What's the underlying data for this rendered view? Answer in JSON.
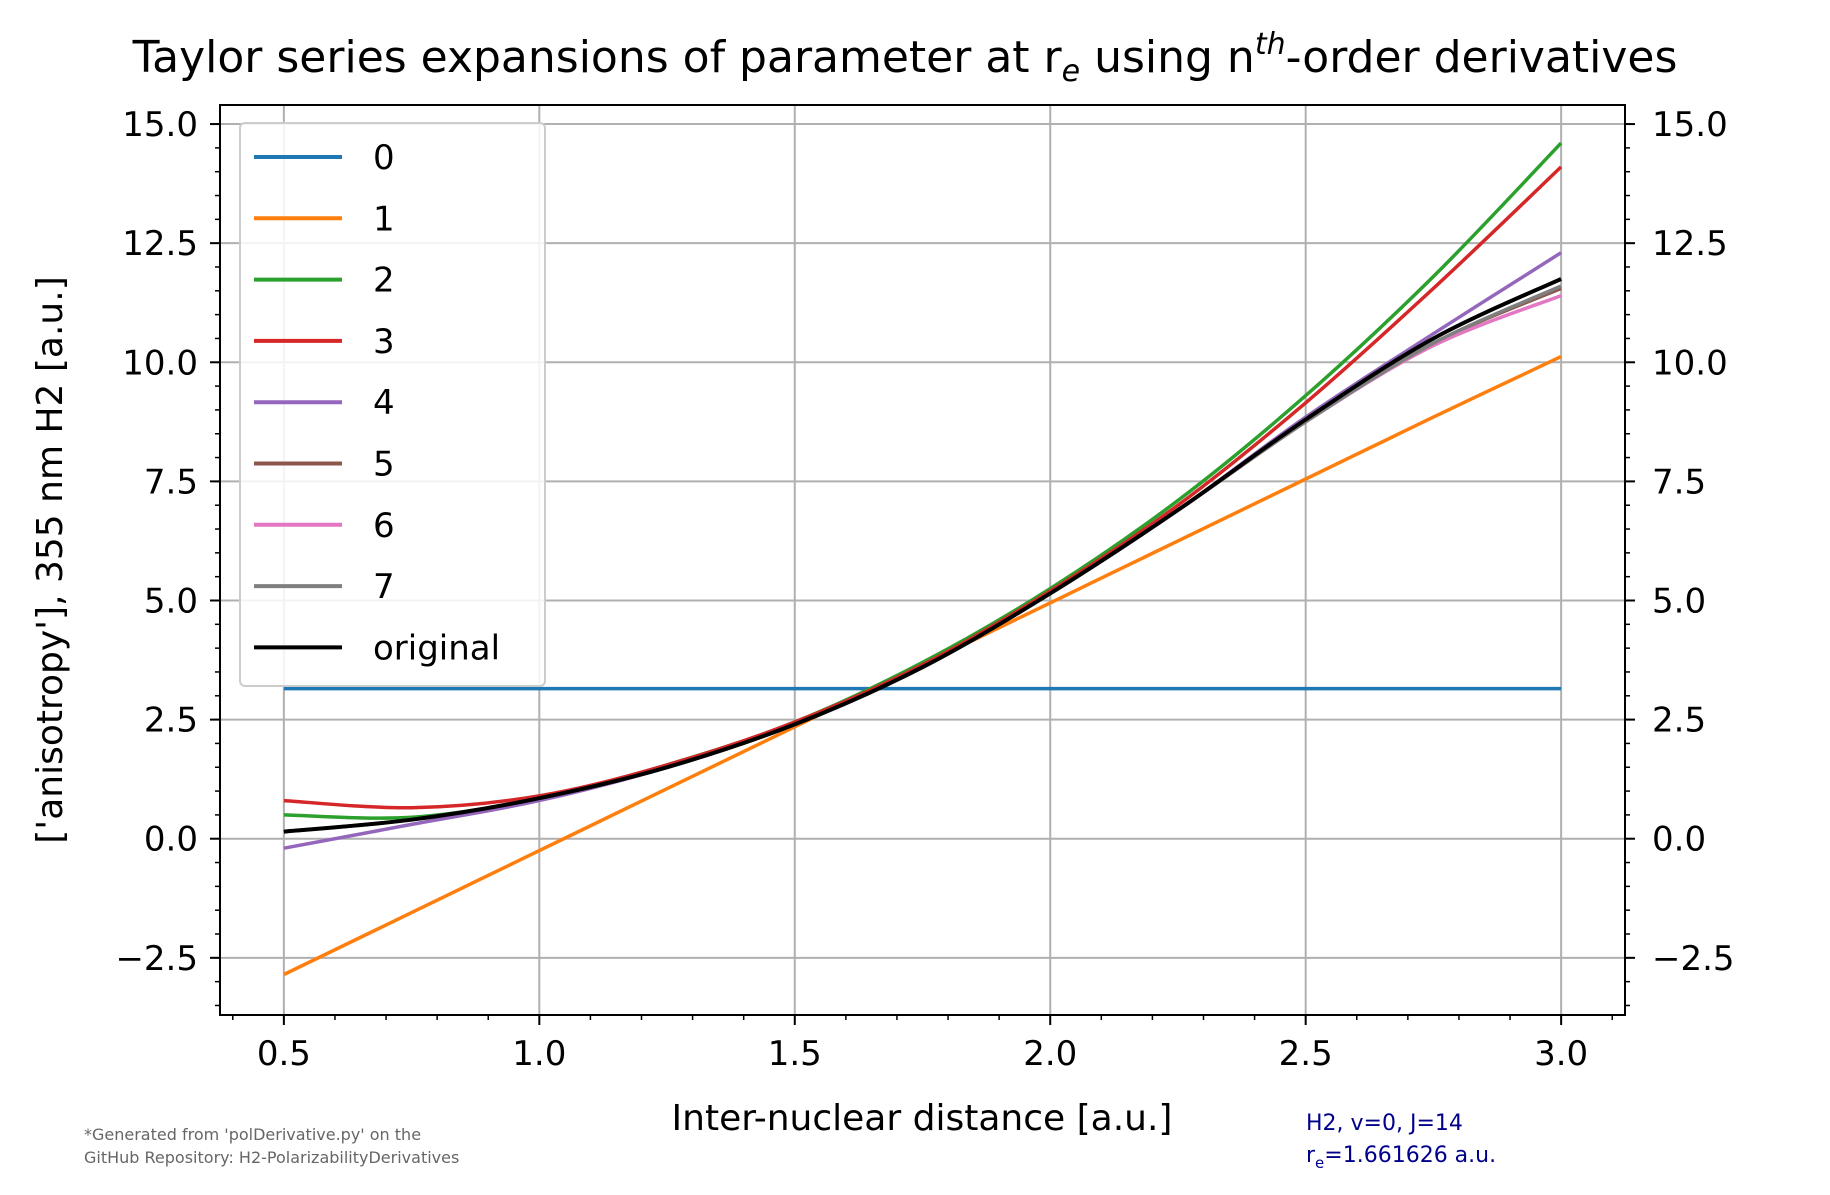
{
  "chart_data": {
    "type": "line",
    "title": "Taylor series expansions of parameter at r",
    "title_sub": "e",
    "title_mid": " using n",
    "title_sup": "th",
    "title_end": "-order derivatives",
    "xlabel": "Inter-nuclear distance [a.u.]",
    "ylabel": "['anisotropy'], 355 nm H2  [a.u.]",
    "xlim": [
      0.375,
      3.125
    ],
    "ylim": [
      -3.7,
      15.4
    ],
    "xticks": [
      "0.5",
      "1.0",
      "1.5",
      "2.0",
      "2.5",
      "3.0"
    ],
    "xtick_values": [
      0.5,
      1.0,
      1.5,
      2.0,
      2.5,
      3.0
    ],
    "yticks": [
      "−2.5",
      "0.0",
      "2.5",
      "5.0",
      "7.5",
      "10.0",
      "12.5",
      "15.0"
    ],
    "ytick_values": [
      -2.5,
      0.0,
      2.5,
      5.0,
      7.5,
      10.0,
      12.5,
      15.0
    ],
    "grid": true,
    "legend_position": "top-left",
    "x": [
      0.5,
      0.75,
      1.0,
      1.25,
      1.5,
      1.75,
      2.0,
      2.25,
      2.5,
      2.75,
      3.0
    ],
    "series": [
      {
        "name": "0",
        "color": "#1f77b4",
        "values": [
          3.15,
          3.15,
          3.15,
          3.15,
          3.15,
          3.15,
          3.15,
          3.15,
          3.15,
          3.15,
          3.15
        ]
      },
      {
        "name": "1",
        "color": "#ff7f0e",
        "values": [
          -2.85,
          -1.55,
          -0.25,
          1.05,
          2.35,
          3.65,
          4.95,
          6.25,
          7.55,
          8.85,
          10.12
        ]
      },
      {
        "name": "2",
        "color": "#2ca02c",
        "values": [
          0.5,
          0.45,
          0.85,
          1.55,
          2.45,
          3.7,
          5.25,
          7.1,
          9.3,
          11.8,
          14.6
        ]
      },
      {
        "name": "3",
        "color": "#d62728",
        "values": [
          0.8,
          0.65,
          0.9,
          1.55,
          2.45,
          3.65,
          5.2,
          7.0,
          9.15,
          11.55,
          14.1
        ]
      },
      {
        "name": "4",
        "color": "#9467bd",
        "values": [
          -0.2,
          0.3,
          0.8,
          1.5,
          2.4,
          3.6,
          5.15,
          6.9,
          8.85,
          10.6,
          12.3
        ]
      },
      {
        "name": "5",
        "color": "#8c564b",
        "values": [
          0.15,
          0.4,
          0.85,
          1.5,
          2.4,
          3.6,
          5.15,
          6.9,
          8.75,
          10.4,
          11.55
        ]
      },
      {
        "name": "6",
        "color": "#e377c2",
        "values": [
          0.15,
          0.4,
          0.85,
          1.5,
          2.4,
          3.6,
          5.15,
          6.9,
          8.75,
          10.35,
          11.4
        ]
      },
      {
        "name": "7",
        "color": "#7f7f7f",
        "values": [
          0.15,
          0.4,
          0.85,
          1.5,
          2.4,
          3.6,
          5.15,
          6.9,
          8.75,
          10.4,
          11.6
        ]
      },
      {
        "name": "original",
        "color": "#000000",
        "values": [
          0.15,
          0.4,
          0.85,
          1.5,
          2.4,
          3.6,
          5.15,
          6.9,
          8.8,
          10.5,
          11.75
        ]
      }
    ]
  },
  "footnote": {
    "line1": "*Generated from 'polDerivative.py' on the",
    "line2": "GitHub Repository: H2-PolarizabilityDerivatives"
  },
  "info": {
    "line1": "H2, v=0, J=14",
    "line2_prefix": "r",
    "line2_sub": "e",
    "line2_suffix": "=1.661626 a.u."
  }
}
